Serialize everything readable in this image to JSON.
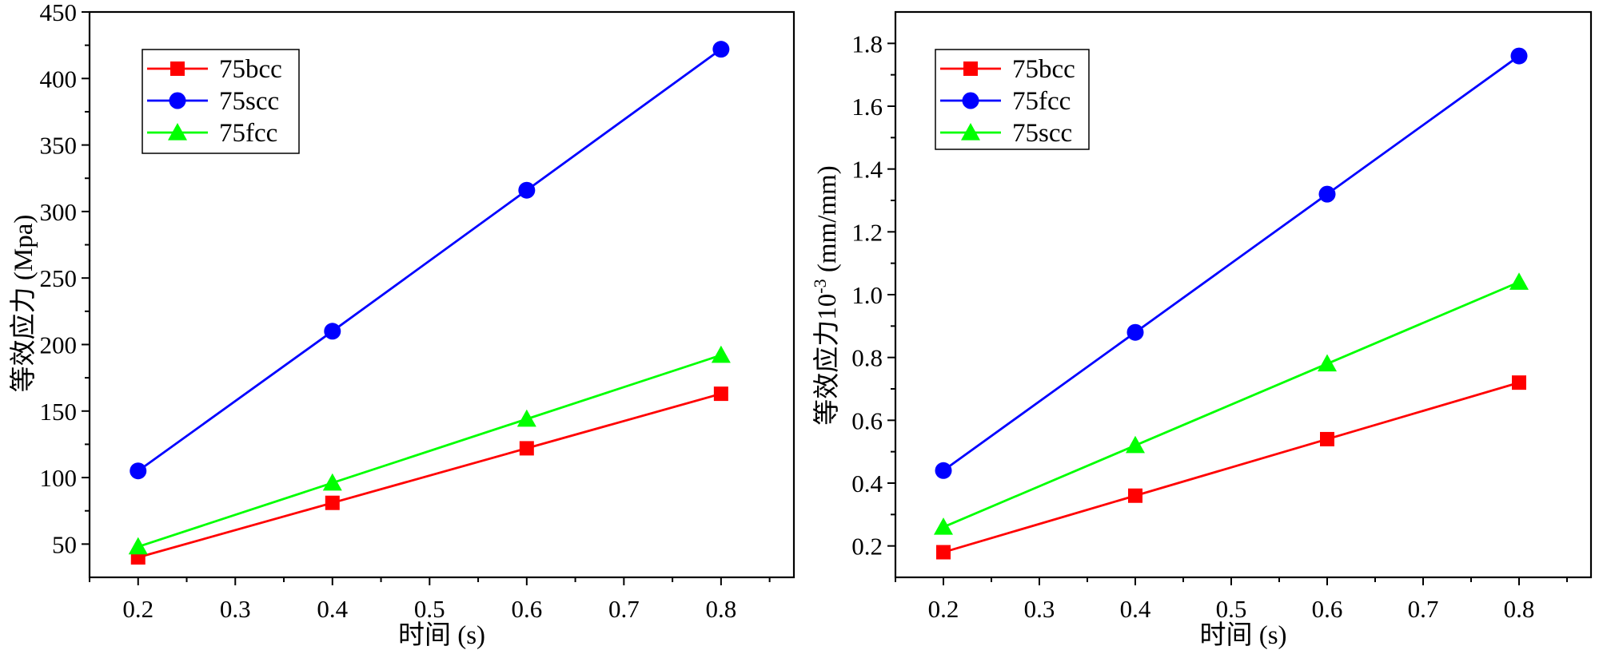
{
  "chart_data": [
    {
      "type": "line",
      "title": "",
      "xlabel": "时间 (s)",
      "ylabel": "等效应力 (Mpa)",
      "ylabel_superscript": "",
      "ylabel_suffix": "",
      "xlim": [
        0.15,
        0.875
      ],
      "ylim": [
        25,
        450
      ],
      "xticks": [
        "0.2",
        "0.3",
        "0.4",
        "0.5",
        "0.6",
        "0.7",
        "0.8"
      ],
      "yticks": [
        "50",
        "100",
        "150",
        "200",
        "250",
        "300",
        "350",
        "400",
        "450"
      ],
      "x": [
        0.2,
        0.4,
        0.6,
        0.8
      ],
      "series": [
        {
          "name": "75bcc",
          "color": "#ff0000",
          "marker": "square",
          "values": [
            40,
            81,
            122,
            163
          ]
        },
        {
          "name": "75scc",
          "color": "#0000ff",
          "marker": "circle",
          "values": [
            105,
            210,
            316,
            422
          ]
        },
        {
          "name": "75fcc",
          "color": "#00ff00",
          "marker": "triangle",
          "values": [
            48,
            96,
            144,
            192
          ]
        }
      ],
      "legend_position": "top-left"
    },
    {
      "type": "line",
      "title": "",
      "xlabel": "时间 (s)",
      "ylabel": "等效应力10",
      "ylabel_superscript": "-3",
      "ylabel_suffix": " (mm/mm)",
      "xlim": [
        0.15,
        0.875
      ],
      "ylim": [
        0.1,
        1.9
      ],
      "xticks": [
        "0.2",
        "0.3",
        "0.4",
        "0.5",
        "0.6",
        "0.7",
        "0.8"
      ],
      "yticks": [
        "0.2",
        "0.4",
        "0.6",
        "0.8",
        "1.0",
        "1.2",
        "1.4",
        "1.6",
        "1.8"
      ],
      "x": [
        0.2,
        0.4,
        0.6,
        0.8
      ],
      "series": [
        {
          "name": "75bcc",
          "color": "#ff0000",
          "marker": "square",
          "values": [
            0.18,
            0.36,
            0.54,
            0.72
          ]
        },
        {
          "name": "75fcc",
          "color": "#0000ff",
          "marker": "circle",
          "values": [
            0.44,
            0.88,
            1.32,
            1.76
          ]
        },
        {
          "name": "75scc",
          "color": "#00ff00",
          "marker": "triangle",
          "values": [
            0.26,
            0.52,
            0.78,
            1.04
          ]
        }
      ],
      "legend_position": "top-left"
    }
  ]
}
